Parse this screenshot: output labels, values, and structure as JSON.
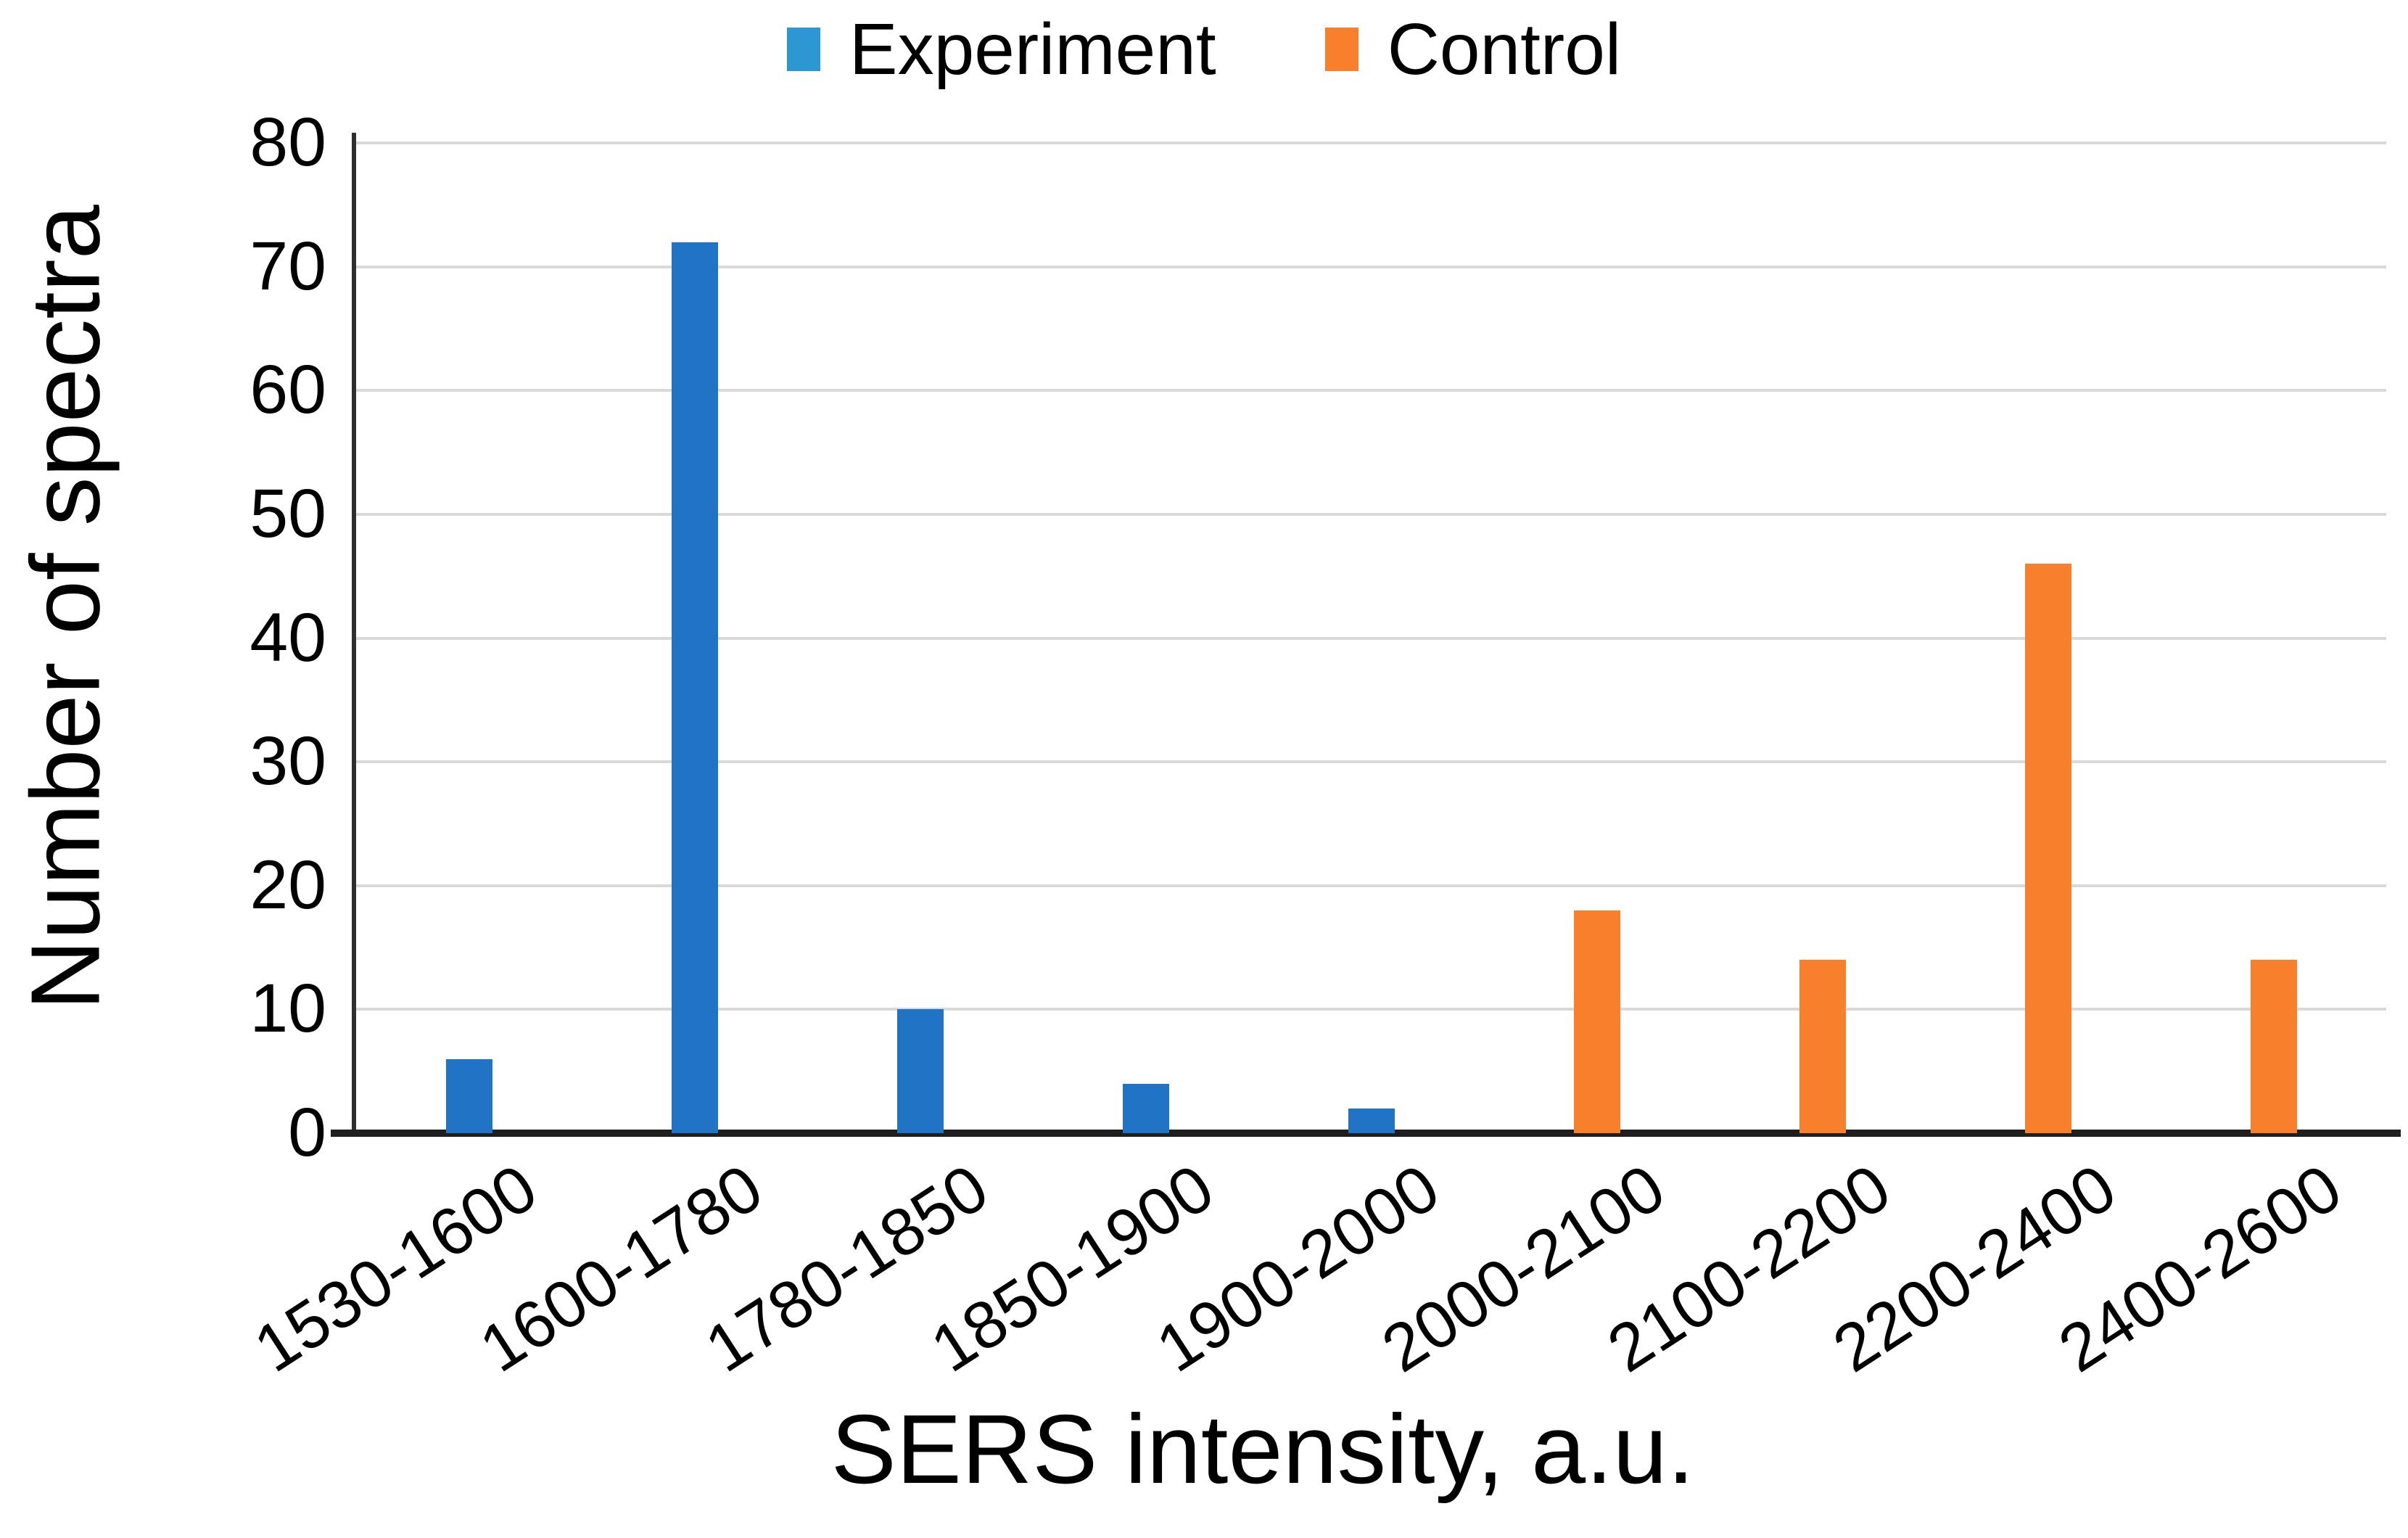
{
  "chart_data": {
    "type": "bar",
    "title": "",
    "xlabel": "SERS intensity, a.u.",
    "ylabel": "Number of spectra",
    "categories": [
      "1530-1600",
      "1600-1780",
      "1780-1850",
      "1850-1900",
      "1900-2000",
      "2000-2100",
      "2100-2200",
      "2200-2400",
      "2400-2600"
    ],
    "series": [
      {
        "name": "Experiment",
        "color": "#2173C6",
        "legend_color": "#2D97D4",
        "values": [
          6,
          72,
          10,
          4,
          2,
          null,
          null,
          null,
          null
        ]
      },
      {
        "name": "Control",
        "color": "#F8802D",
        "legend_color": "#F8802D",
        "values": [
          null,
          null,
          null,
          null,
          null,
          18,
          14,
          46,
          14
        ]
      }
    ],
    "ylim": [
      0,
      80
    ],
    "ytick_step": 10,
    "grid": true,
    "legend_position": "top",
    "axis_color": "#1f1f1f",
    "gridline_color": "#d9d9d9",
    "text_color": "#000000"
  }
}
